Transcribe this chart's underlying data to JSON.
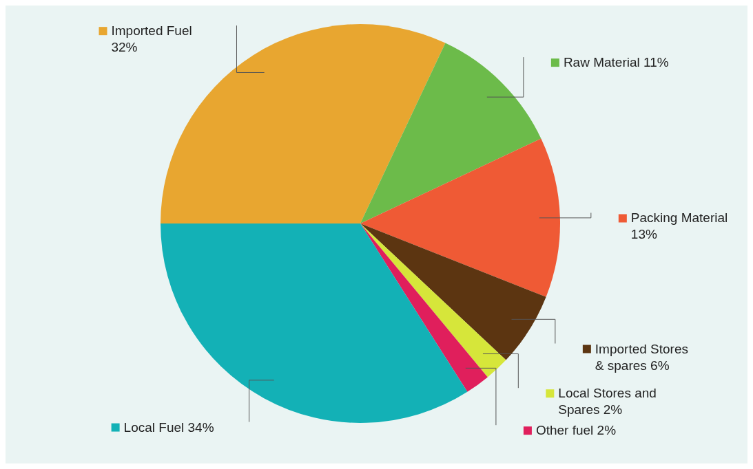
{
  "chart_data": {
    "type": "pie",
    "categories": [
      "Imported Fuel 32%",
      "Raw Material 11%",
      "Packing Material 13%",
      "Imported Stores & spares 6%",
      "Local Stores and Spares 2%",
      "Other fuel 2%",
      "Local Fuel 34%"
    ],
    "values": [
      32,
      11,
      13,
      6,
      2,
      2,
      34
    ],
    "colors": [
      "#e8a630",
      "#6cbb4a",
      "#ef5a35",
      "#5c3511",
      "#d6e63a",
      "#e01f5c",
      "#13b1b6"
    ],
    "legend": "right"
  }
}
